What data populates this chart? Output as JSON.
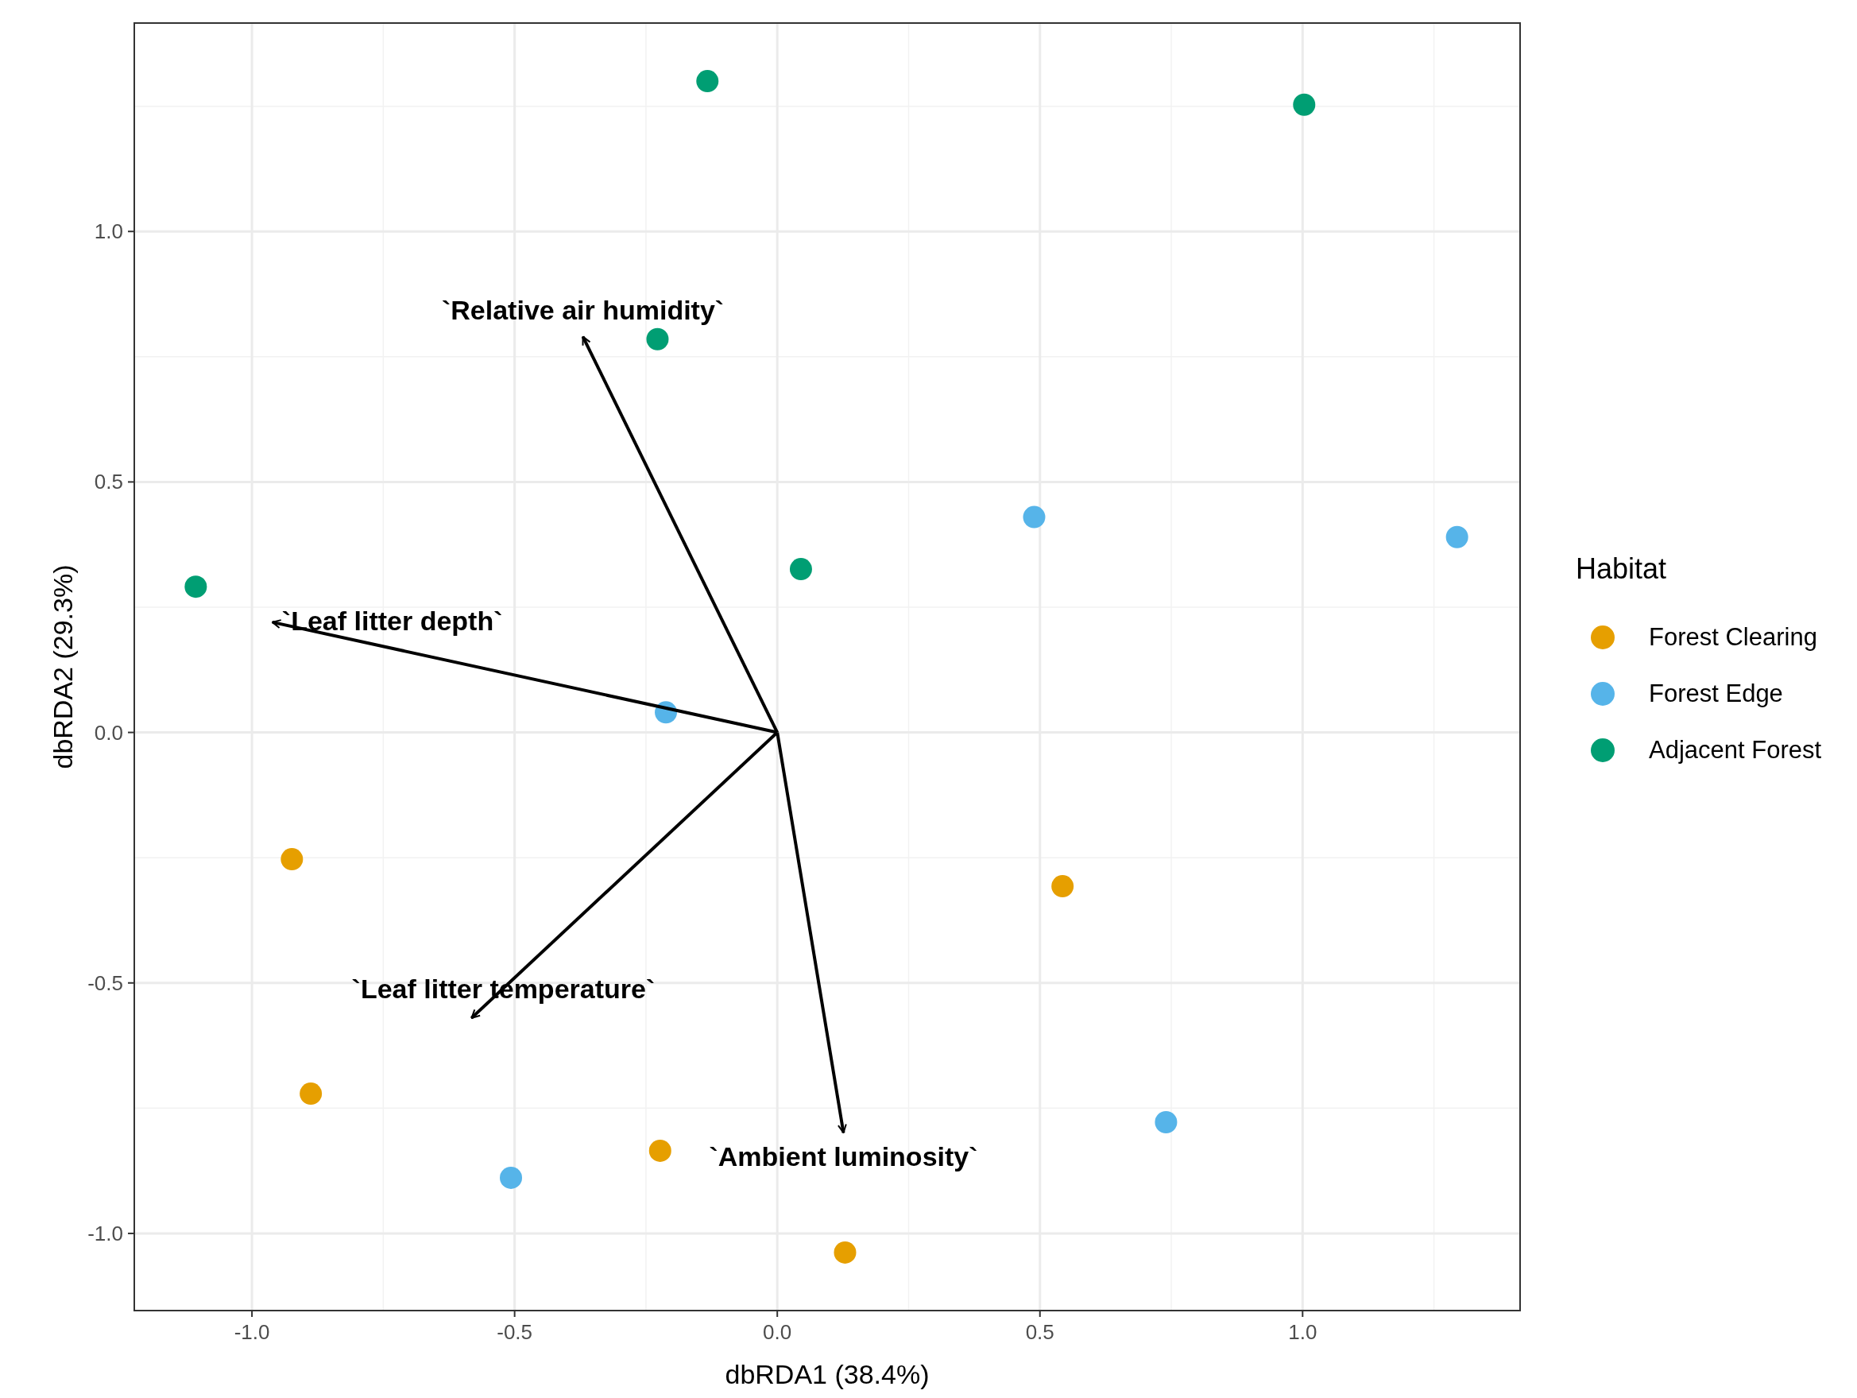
{
  "chart_data": {
    "type": "scatter",
    "xlabel": "dbRDA1 (38.4%)",
    "ylabel": "dbRDA2 (29.3%)",
    "legend_title": "Habitat",
    "legend": "right",
    "grid": true,
    "marker": "circle",
    "xlim": [
      -1.224,
      1.414
    ],
    "ylim": [
      -1.154,
      1.416
    ],
    "xticks": [
      {
        "value": -1,
        "label": "-1.0"
      },
      {
        "value": -0.5,
        "label": "-0.5"
      },
      {
        "value": 0,
        "label": "0.0"
      },
      {
        "value": 0.5,
        "label": "0.5"
      },
      {
        "value": 1,
        "label": "1.0"
      }
    ],
    "yticks": [
      {
        "value": -1,
        "label": "-1.0"
      },
      {
        "value": -0.5,
        "label": "-0.5"
      },
      {
        "value": 0,
        "label": "0.0"
      },
      {
        "value": 0.5,
        "label": "0.5"
      },
      {
        "value": 1,
        "label": "1.0"
      }
    ],
    "series": [
      {
        "name": "Forest Clearing",
        "color": "#e69f00",
        "x": [
          -0.924,
          0.543,
          -0.888,
          -0.223,
          0.129
        ],
        "values": [
          -0.253,
          -0.307,
          -0.721,
          -0.835,
          -1.038
        ]
      },
      {
        "name": "Forest Edge",
        "color": "#56b4e9",
        "x": [
          0.489,
          1.294,
          -0.212,
          0.74,
          -0.507
        ],
        "values": [
          0.43,
          0.39,
          0.04,
          -0.778,
          -0.889
        ]
      },
      {
        "name": "Adjacent Forest",
        "color": "#009e73",
        "x": [
          -0.133,
          1.003,
          -0.228,
          0.045,
          -1.107
        ],
        "values": [
          1.3,
          1.253,
          0.785,
          0.326,
          0.291
        ]
      },
      {
        "type": "line",
        "name": "`Relative air humidity`",
        "color": "#000000",
        "marker": "none",
        "x": [
          0,
          -0.37
        ],
        "values": [
          0,
          0.79
        ]
      },
      {
        "type": "line",
        "name": "`Leaf litter depth`",
        "color": "#000000",
        "marker": "none",
        "x": [
          0,
          -0.961
        ],
        "values": [
          0,
          0.22
        ]
      },
      {
        "type": "line",
        "name": "`Leaf litter temperature`",
        "color": "#000000",
        "marker": "none",
        "x": [
          0,
          -0.582
        ],
        "values": [
          0,
          -0.57
        ]
      },
      {
        "type": "line",
        "name": "`Ambient luminosity`",
        "color": "#000000",
        "marker": "none",
        "x": [
          0,
          0.126
        ],
        "values": [
          0,
          -0.799
        ]
      }
    ]
  }
}
